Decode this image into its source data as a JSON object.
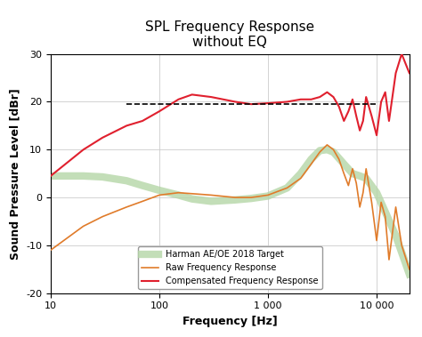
{
  "chart_data": {
    "type": "line",
    "title": "SPL Frequency Response\nwithout EQ",
    "x_label": "Frequency [Hz]",
    "y_label": "Sound Pressure Level [dBr]",
    "log": "x",
    "grid": true,
    "legend": "lower center",
    "xlim": [
      10,
      20000
    ],
    "ylim": [
      -20,
      30
    ],
    "xticks": [
      10,
      100,
      {
        "value": 1000,
        "label": "1 000"
      },
      {
        "value": 10000,
        "label": "10 000"
      }
    ],
    "yticks": [
      -20,
      -10,
      0,
      10,
      20,
      30
    ],
    "series": [
      {
        "name": "Harman AE/OE 2018 Target",
        "color": "#b5d6a7",
        "line_style": "solid",
        "x": [
          10,
          20,
          30,
          50,
          70,
          100,
          150,
          200,
          300,
          500,
          700,
          1000,
          1500,
          2000,
          2500,
          3000,
          3500,
          4000,
          5000,
          6000,
          7000,
          8000,
          10000,
          12000,
          15000,
          20000
        ],
        "values": [
          4.5,
          4.5,
          4.3,
          3.5,
          2.5,
          1.5,
          0.5,
          -0.3,
          -0.8,
          -0.5,
          -0.2,
          0.3,
          2,
          5,
          8,
          9.8,
          10,
          9.5,
          7,
          5,
          4.5,
          4,
          1,
          -3,
          -8,
          -16
        ]
      },
      {
        "name": "Raw Frequency Response",
        "color": "#e07b2a",
        "line_style": "solid",
        "x": [
          10,
          20,
          30,
          50,
          70,
          100,
          150,
          200,
          300,
          500,
          700,
          1000,
          1500,
          2000,
          2500,
          3000,
          3500,
          4000,
          4500,
          5000,
          5500,
          6000,
          6500,
          7000,
          7500,
          8000,
          9000,
          10000,
          11000,
          12000,
          13000,
          15000,
          17000,
          20000
        ],
        "values": [
          -11,
          -6,
          -4,
          -2,
          -0.8,
          0.5,
          1,
          0.8,
          0.5,
          0,
          0,
          0.5,
          2,
          4,
          7,
          9.5,
          11,
          10,
          8,
          5,
          2.5,
          6,
          3,
          -2,
          1,
          6,
          -1,
          -9,
          -1,
          -4,
          -13,
          -2,
          -10,
          -15
        ]
      },
      {
        "name": "Compensated Frequency Response",
        "color": "#e0202e",
        "line_style": "solid",
        "x": [
          10,
          20,
          30,
          50,
          70,
          100,
          150,
          200,
          300,
          500,
          700,
          1000,
          1500,
          2000,
          2500,
          3000,
          3500,
          4000,
          4500,
          5000,
          5500,
          6000,
          6500,
          7000,
          7500,
          8000,
          9000,
          10000,
          11000,
          12000,
          13000,
          15000,
          17000,
          20000
        ],
        "values": [
          4.5,
          10,
          12.5,
          15,
          16,
          18,
          20.5,
          21.5,
          21,
          20,
          19.5,
          19.7,
          20,
          20.5,
          20.5,
          21,
          22,
          21,
          19,
          16,
          18,
          20.5,
          17,
          14,
          16,
          21,
          17,
          13,
          20,
          22,
          16,
          26,
          30,
          26
        ]
      },
      {
        "color": "#000000",
        "line_style": "dashed",
        "x": [
          50,
          10000
        ],
        "values": [
          19.5,
          19.5
        ]
      }
    ]
  }
}
